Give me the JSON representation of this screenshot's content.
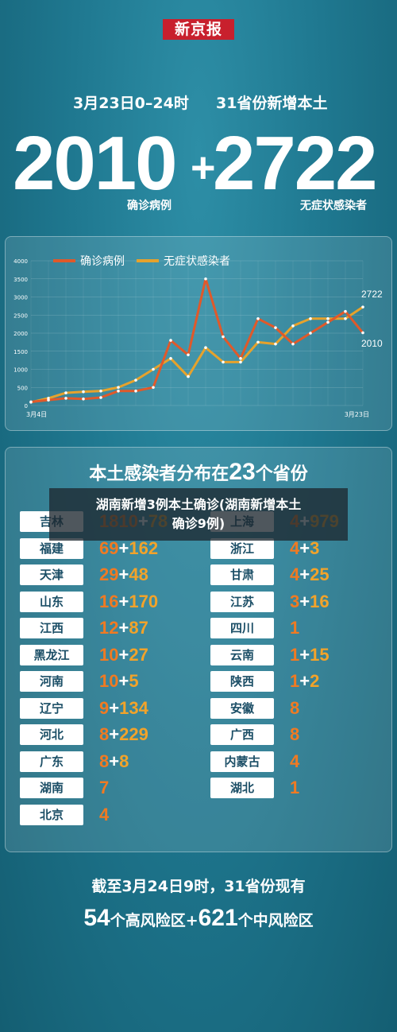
{
  "brand": "新京报",
  "header": {
    "date": "3月23日0–24时",
    "scope": "31省份新增本土",
    "confirmed": "2010",
    "plus": "+",
    "asymptomatic": "2722",
    "confirmed_label": "确诊病例",
    "asymptomatic_label": "无症状感染者"
  },
  "colors": {
    "confirmed": "#e0592a",
    "asymptomatic": "#e6a22c",
    "background": "#1d7389"
  },
  "chart_data": {
    "type": "line",
    "x": [
      "3月4日",
      "3月5日",
      "3月6日",
      "3月7日",
      "3月8日",
      "3月9日",
      "3月10日",
      "3月11日",
      "3月12日",
      "3月13日",
      "3月14日",
      "3月15日",
      "3月16日",
      "3月17日",
      "3月18日",
      "3月19日",
      "3月20日",
      "3月21日",
      "3月22日",
      "3月23日"
    ],
    "x_tick_labels": [
      "3月4日",
      "3月23日"
    ],
    "ylim": [
      0,
      4000
    ],
    "y_ticks": [
      "0",
      "500",
      "1000",
      "1500",
      "2000",
      "2500",
      "3000",
      "3500",
      "4000"
    ],
    "legend": "top-left",
    "series": [
      {
        "name": "确诊病例",
        "values": [
          100,
          150,
          200,
          180,
          220,
          400,
          400,
          500,
          1800,
          1400,
          3500,
          1900,
          1300,
          2400,
          2150,
          1700,
          2000,
          2300,
          2600,
          2010
        ]
      },
      {
        "name": "无症状感染者",
        "values": [
          90,
          200,
          350,
          380,
          400,
          500,
          700,
          1000,
          1300,
          800,
          1600,
          1200,
          1200,
          1750,
          1700,
          2200,
          2400,
          2400,
          2400,
          2722
        ]
      }
    ],
    "end_labels": [
      "2722",
      "2010"
    ]
  },
  "provinces": {
    "title_pre": "本土感染者分布在",
    "title_num": "23",
    "title_post": "个省份",
    "left": [
      {
        "name": "吉林",
        "confirmed": "1810",
        "asym": "78"
      },
      {
        "name": "福建",
        "confirmed": "69",
        "asym": "162"
      },
      {
        "name": "天津",
        "confirmed": "29",
        "asym": "48"
      },
      {
        "name": "山东",
        "confirmed": "16",
        "asym": "170"
      },
      {
        "name": "江西",
        "confirmed": "12",
        "asym": "87"
      },
      {
        "name": "黑龙江",
        "confirmed": "10",
        "asym": "27"
      },
      {
        "name": "河南",
        "confirmed": "10",
        "asym": "5"
      },
      {
        "name": "辽宁",
        "confirmed": "9",
        "asym": "134"
      },
      {
        "name": "河北",
        "confirmed": "8",
        "asym": "229"
      },
      {
        "name": "广东",
        "confirmed": "8",
        "asym": "8"
      },
      {
        "name": "湖南",
        "confirmed": "7",
        "asym": ""
      },
      {
        "name": "北京",
        "confirmed": "4",
        "asym": ""
      }
    ],
    "right": [
      {
        "name": "上海",
        "confirmed": "4",
        "asym": "979"
      },
      {
        "name": "浙江",
        "confirmed": "4",
        "asym": "3"
      },
      {
        "name": "甘肃",
        "confirmed": "4",
        "asym": "25"
      },
      {
        "name": "江苏",
        "confirmed": "3",
        "asym": "16"
      },
      {
        "name": "四川",
        "confirmed": "1",
        "asym": ""
      },
      {
        "name": "云南",
        "confirmed": "1",
        "asym": "15"
      },
      {
        "name": "陕西",
        "confirmed": "1",
        "asym": "2"
      },
      {
        "name": "安徽",
        "confirmed": "8",
        "asym": ""
      },
      {
        "name": "广西",
        "confirmed": "8",
        "asym": ""
      },
      {
        "name": "内蒙古",
        "confirmed": "4",
        "asym": ""
      },
      {
        "name": "湖北",
        "confirmed": "1",
        "asym": ""
      }
    ]
  },
  "banner": {
    "line1": "湖南新增3例本土确诊(湖南新增本土",
    "line2": "确诊9例)"
  },
  "footer": {
    "line1": "截至3月24日9时，31省份现有",
    "high_num": "54",
    "high_text": "个高风险区+",
    "mid_num": "621",
    "mid_text": "个中风险区"
  }
}
